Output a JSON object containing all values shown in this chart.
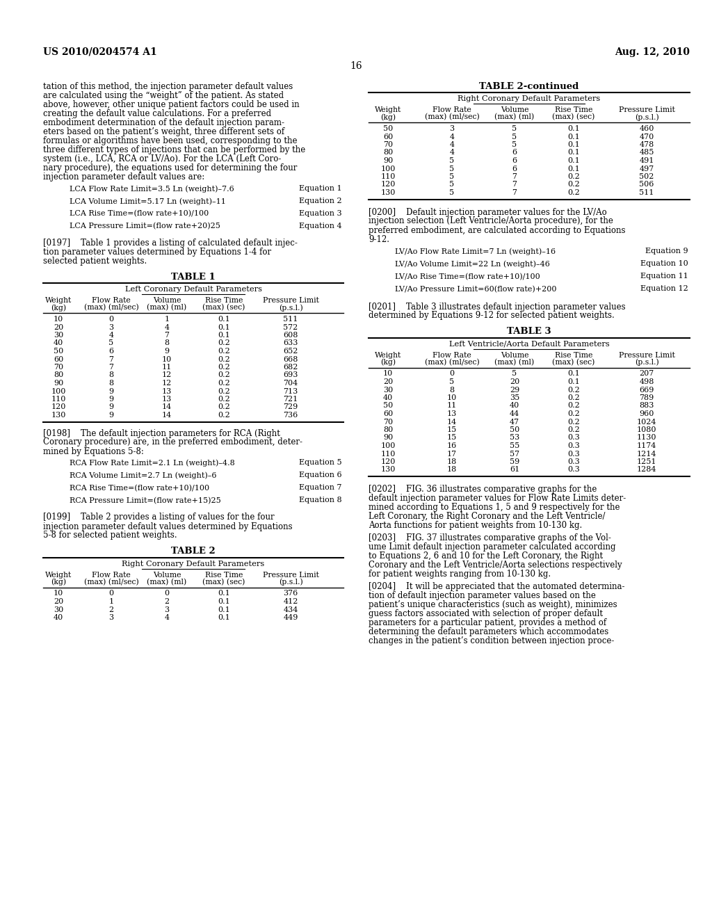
{
  "page_width": 10.24,
  "page_height": 13.2,
  "bg_color": "#ffffff",
  "header_left": "US 2010/0204574 A1",
  "header_right": "Aug. 12, 2010",
  "page_number": "16",
  "left_body_text": [
    "tation of this method, the injection parameter default values",
    "are calculated using the “weight” of the patient. As stated",
    "above, however, other unique patient factors could be used in",
    "creating the default value calculations. For a preferred",
    "embodiment determination of the default injection param-",
    "eters based on the patient’s weight, three different sets of",
    "formulas or algorithms have been used, corresponding to the",
    "three different types of injections that can be performed by the",
    "system (i.e., LCA, RCA or LV/Ao). For the LCA (Left Coro-",
    "nary procedure), the equations used for determining the four",
    "injection parameter default values are:"
  ],
  "equations_lca": [
    [
      "LCA Flow Rate Limit=3.5 Ln (weight)–7.6",
      "Equation 1"
    ],
    [
      "LCA Volume Limit=5.17 Ln (weight)–11",
      "Equation 2"
    ],
    [
      "LCA Rise Time=(flow rate+10)/100",
      "Equation 3"
    ],
    [
      "LCA Pressure Limit=(flow rate+20)25",
      "Equation 4"
    ]
  ],
  "para_0197": [
    "[0197]    Table 1 provides a listing of calculated default injec-",
    "tion parameter values determined by Equations 1-4 for",
    "selected patient weights."
  ],
  "table1_title": "TABLE 1",
  "table1_subtitle": "Left Coronary Default Parameters",
  "table1_data": [
    [
      "10",
      "0",
      "1",
      "0.1",
      "511"
    ],
    [
      "20",
      "3",
      "4",
      "0.1",
      "572"
    ],
    [
      "30",
      "4",
      "7",
      "0.1",
      "608"
    ],
    [
      "40",
      "5",
      "8",
      "0.2",
      "633"
    ],
    [
      "50",
      "6",
      "9",
      "0.2",
      "652"
    ],
    [
      "60",
      "7",
      "10",
      "0.2",
      "668"
    ],
    [
      "70",
      "7",
      "11",
      "0.2",
      "682"
    ],
    [
      "80",
      "8",
      "12",
      "0.2",
      "693"
    ],
    [
      "90",
      "8",
      "12",
      "0.2",
      "704"
    ],
    [
      "100",
      "9",
      "13",
      "0.2",
      "713"
    ],
    [
      "110",
      "9",
      "13",
      "0.2",
      "721"
    ],
    [
      "120",
      "9",
      "14",
      "0.2",
      "729"
    ],
    [
      "130",
      "9",
      "14",
      "0.2",
      "736"
    ]
  ],
  "para_0198": [
    "[0198]    The default injection parameters for RCA (Right",
    "Coronary procedure) are, in the preferred embodiment, deter-",
    "mined by Equations 5-8:"
  ],
  "equations_rca": [
    [
      "RCA Flow Rate Limit=2.1 Ln (weight)–4.8",
      "Equation 5"
    ],
    [
      "RCA Volume Limit=2.7 Ln (weight)–6",
      "Equation 6"
    ],
    [
      "RCA Rise Time=(flow rate+10)/100",
      "Equation 7"
    ],
    [
      "RCA Pressure Limit=(flow rate+15)25",
      "Equation 8"
    ]
  ],
  "para_0199": [
    "[0199]    Table 2 provides a listing of values for the four",
    "injection parameter default values determined by Equations",
    "5-8 for selected patient weights."
  ],
  "table2_title": "TABLE 2",
  "table2_subtitle": "Right Coronary Default Parameters",
  "table2_data_part1": [
    [
      "10",
      "0",
      "0",
      "0.1",
      "376"
    ],
    [
      "20",
      "1",
      "2",
      "0.1",
      "412"
    ],
    [
      "30",
      "2",
      "3",
      "0.1",
      "434"
    ],
    [
      "40",
      "3",
      "4",
      "0.1",
      "449"
    ]
  ],
  "table2cont_title": "TABLE 2-continued",
  "table2cont_subtitle": "Right Coronary Default Parameters",
  "table2_data_part2": [
    [
      "50",
      "3",
      "5",
      "0.1",
      "460"
    ],
    [
      "60",
      "4",
      "5",
      "0.1",
      "470"
    ],
    [
      "70",
      "4",
      "5",
      "0.1",
      "478"
    ],
    [
      "80",
      "4",
      "6",
      "0.1",
      "485"
    ],
    [
      "90",
      "5",
      "6",
      "0.1",
      "491"
    ],
    [
      "100",
      "5",
      "6",
      "0.1",
      "497"
    ],
    [
      "110",
      "5",
      "7",
      "0.2",
      "502"
    ],
    [
      "120",
      "5",
      "7",
      "0.2",
      "506"
    ],
    [
      "130",
      "5",
      "7",
      "0.2",
      "511"
    ]
  ],
  "para_0200": [
    "[0200]    Default injection parameter values for the LV/Ao",
    "injection selection (Left Ventricle/Aorta procedure), for the",
    "preferred embodiment, are calculated according to Equations",
    "9-12."
  ],
  "equations_lv": [
    [
      "LV/Ao Flow Rate Limit=7 Ln (weight)–16",
      "Equation 9"
    ],
    [
      "LV/Ao Volume Limit=22 Ln (weight)–46",
      "Equation 10"
    ],
    [
      "LV/Ao Rise Time=(flow rate+10)/100",
      "Equation 11"
    ],
    [
      "LV/Ao Pressure Limit=60(flow rate)+200",
      "Equation 12"
    ]
  ],
  "para_0201": [
    "[0201]    Table 3 illustrates default injection parameter values",
    "determined by Equations 9-12 for selected patient weights."
  ],
  "table3_title": "TABLE 3",
  "table3_subtitle": "Left Ventricle/Aorta Default Parameters",
  "table3_data": [
    [
      "10",
      "0",
      "5",
      "0.1",
      "207"
    ],
    [
      "20",
      "5",
      "20",
      "0.1",
      "498"
    ],
    [
      "30",
      "8",
      "29",
      "0.2",
      "669"
    ],
    [
      "40",
      "10",
      "35",
      "0.2",
      "789"
    ],
    [
      "50",
      "11",
      "40",
      "0.2",
      "883"
    ],
    [
      "60",
      "13",
      "44",
      "0.2",
      "960"
    ],
    [
      "70",
      "14",
      "47",
      "0.2",
      "1024"
    ],
    [
      "80",
      "15",
      "50",
      "0.2",
      "1080"
    ],
    [
      "90",
      "15",
      "53",
      "0.3",
      "1130"
    ],
    [
      "100",
      "16",
      "55",
      "0.3",
      "1174"
    ],
    [
      "110",
      "17",
      "57",
      "0.3",
      "1214"
    ],
    [
      "120",
      "18",
      "59",
      "0.3",
      "1251"
    ],
    [
      "130",
      "18",
      "61",
      "0.3",
      "1284"
    ]
  ],
  "para_0202": [
    "[0202]    FIG. 36 illustrates comparative graphs for the",
    "default injection parameter values for Flow Rate Limits deter-",
    "mined according to Equations 1, 5 and 9 respectively for the",
    "Left Coronary, the Right Coronary and the Left Ventricle/",
    "Aorta functions for patient weights from 10-130 kg."
  ],
  "para_0203": [
    "[0203]    FIG. 37 illustrates comparative graphs of the Vol-",
    "ume Limit default injection parameter calculated according",
    "to Equations 2, 6 and 10 for the Left Coronary, the Right",
    "Coronary and the Left Ventricle/Aorta selections respectively",
    "for patient weights ranging from 10-130 kg."
  ],
  "para_0204": [
    "[0204]    It will be appreciated that the automated determina-",
    "tion of default injection parameter values based on the",
    "patient’s unique characteristics (such as weight), minimizes",
    "guess factors associated with selection of proper default",
    "parameters for a particular patient, provides a method of",
    "determining the default parameters which accommodates",
    "changes in the patient’s condition between injection proce-"
  ],
  "col_headers": [
    "Weight\n(kg)",
    "Flow Rate\n(max) (ml/sec)",
    "Volume\n(max) (ml)",
    "Rise Time\n(max) (sec)",
    "Pressure Limit\n(p.s.l.)"
  ]
}
